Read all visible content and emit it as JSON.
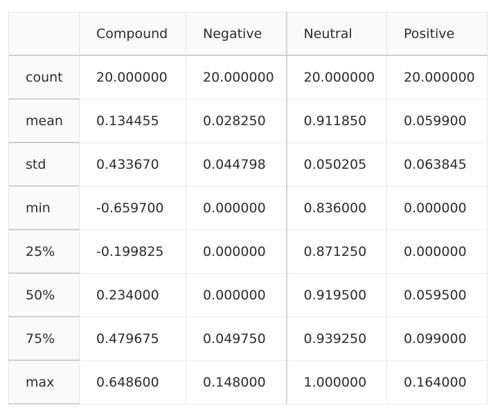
{
  "table": {
    "columns": [
      "",
      "Compound",
      "Negative",
      "Neutral",
      "Positive"
    ],
    "rows": [
      {
        "label": "count",
        "values": [
          "20.000000",
          "20.000000",
          "20.000000",
          "20.000000"
        ]
      },
      {
        "label": "mean",
        "values": [
          "0.134455",
          "0.028250",
          "0.911850",
          "0.059900"
        ]
      },
      {
        "label": "std",
        "values": [
          "0.433670",
          "0.044798",
          "0.050205",
          "0.063845"
        ]
      },
      {
        "label": "min",
        "values": [
          "-0.659700",
          "0.000000",
          "0.836000",
          "0.000000"
        ]
      },
      {
        "label": "25%",
        "values": [
          "-0.199825",
          "0.000000",
          "0.871250",
          "0.000000"
        ]
      },
      {
        "label": "50%",
        "values": [
          "0.234000",
          "0.000000",
          "0.919500",
          "0.059500"
        ]
      },
      {
        "label": "75%",
        "values": [
          "0.479675",
          "0.049750",
          "0.939250",
          "0.099000"
        ]
      },
      {
        "label": "max",
        "values": [
          "0.648600",
          "0.148000",
          "1.000000",
          "0.164000"
        ]
      }
    ]
  }
}
